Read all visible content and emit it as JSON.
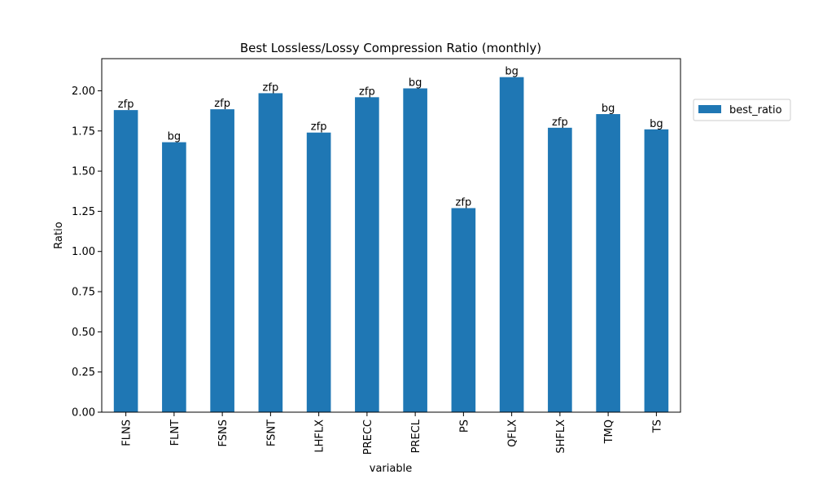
{
  "chart_data": {
    "type": "bar",
    "title": "Best Lossless/Lossy Compression Ratio (monthly)",
    "xlabel": "variable",
    "ylabel": "Ratio",
    "ylim": [
      0,
      2.2
    ],
    "yticks": [
      0.0,
      0.25,
      0.5,
      0.75,
      1.0,
      1.25,
      1.5,
      1.75,
      2.0
    ],
    "ytick_labels": [
      "0.00",
      "0.25",
      "0.50",
      "0.75",
      "1.00",
      "1.25",
      "1.50",
      "1.75",
      "2.00"
    ],
    "categories": [
      "FLNS",
      "FLNT",
      "FSNS",
      "FSNT",
      "LHFLX",
      "PRECC",
      "PRECL",
      "PS",
      "QFLX",
      "SHFLX",
      "TMQ",
      "TS"
    ],
    "series": [
      {
        "name": "best_ratio",
        "color": "#1f77b4",
        "values": [
          1.88,
          1.68,
          1.885,
          1.985,
          1.74,
          1.96,
          2.015,
          1.27,
          2.085,
          1.77,
          1.855,
          1.76
        ]
      }
    ],
    "bar_labels": [
      "zfp",
      "bg",
      "zfp",
      "zfp",
      "zfp",
      "zfp",
      "bg",
      "zfp",
      "bg",
      "zfp",
      "bg",
      "bg"
    ],
    "legend_position": "outside-right",
    "grid": false
  }
}
